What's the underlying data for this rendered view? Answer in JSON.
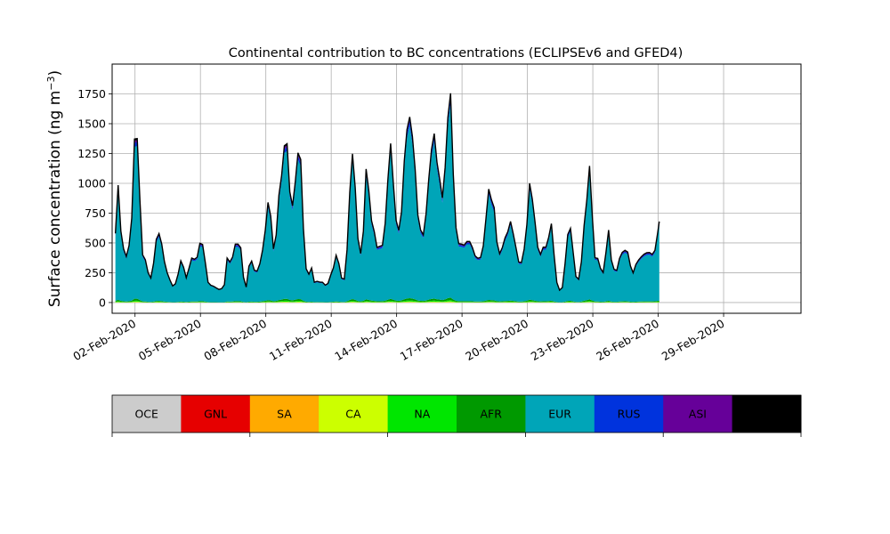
{
  "chart_data": {
    "type": "area",
    "title": "Continental contribution to BC concentrations (ECLIPSEv6 and GFED4)",
    "ylabel_text": "Surface concentration (ng m",
    "ylabel_exp": "−3",
    "ylabel_close": ")",
    "ylim": [
      -90,
      2000
    ],
    "yticks": [
      0,
      250,
      500,
      750,
      1000,
      1250,
      1500,
      1750
    ],
    "xlim": [
      -1.05,
      30.55
    ],
    "xticks": [
      {
        "pos": 0,
        "label": "02-Feb-2020"
      },
      {
        "pos": 3,
        "label": "05-Feb-2020"
      },
      {
        "pos": 6,
        "label": "08-Feb-2020"
      },
      {
        "pos": 9,
        "label": "11-Feb-2020"
      },
      {
        "pos": 12,
        "label": "14-Feb-2020"
      },
      {
        "pos": 15,
        "label": "17-Feb-2020"
      },
      {
        "pos": 18,
        "label": "20-Feb-2020"
      },
      {
        "pos": 21,
        "label": "23-Feb-2020"
      },
      {
        "pos": 24,
        "label": "26-Feb-2020"
      },
      {
        "pos": 27,
        "label": "29-Feb-2020"
      }
    ],
    "grid": true,
    "time_start_days": -0.9,
    "time_step_days": 0.125,
    "total_curve_knots": [
      [
        -0.9,
        580
      ],
      [
        -0.78,
        1000
      ],
      [
        -0.65,
        600
      ],
      [
        -0.5,
        420
      ],
      [
        -0.38,
        380
      ],
      [
        -0.25,
        500
      ],
      [
        -0.13,
        750
      ],
      [
        -0.05,
        1350
      ],
      [
        0.08,
        1460
      ],
      [
        0.2,
        950
      ],
      [
        0.35,
        400
      ],
      [
        0.5,
        350
      ],
      [
        0.62,
        230
      ],
      [
        0.75,
        200
      ],
      [
        0.85,
        330
      ],
      [
        1.0,
        570
      ],
      [
        1.12,
        580
      ],
      [
        1.25,
        470
      ],
      [
        1.4,
        280
      ],
      [
        1.5,
        240
      ],
      [
        1.62,
        180
      ],
      [
        1.75,
        130
      ],
      [
        1.9,
        170
      ],
      [
        2.1,
        350
      ],
      [
        2.2,
        330
      ],
      [
        2.3,
        200
      ],
      [
        2.42,
        220
      ],
      [
        2.55,
        380
      ],
      [
        2.7,
        360
      ],
      [
        2.85,
        380
      ],
      [
        3.0,
        520
      ],
      [
        3.12,
        480
      ],
      [
        3.25,
        300
      ],
      [
        3.35,
        170
      ],
      [
        3.5,
        140
      ],
      [
        3.65,
        135
      ],
      [
        3.8,
        110
      ],
      [
        3.95,
        110
      ],
      [
        4.1,
        150
      ],
      [
        4.2,
        380
      ],
      [
        4.35,
        340
      ],
      [
        4.5,
        390
      ],
      [
        4.6,
        490
      ],
      [
        4.75,
        490
      ],
      [
        4.88,
        450
      ],
      [
        5.0,
        150
      ],
      [
        5.1,
        130
      ],
      [
        5.25,
        340
      ],
      [
        5.38,
        350
      ],
      [
        5.5,
        250
      ],
      [
        5.65,
        270
      ],
      [
        5.8,
        380
      ],
      [
        5.95,
        560
      ],
      [
        6.1,
        840
      ],
      [
        6.2,
        780
      ],
      [
        6.35,
        450
      ],
      [
        6.45,
        500
      ],
      [
        6.6,
        900
      ],
      [
        6.75,
        1100
      ],
      [
        6.88,
        1380
      ],
      [
        7.0,
        1320
      ],
      [
        7.12,
        850
      ],
      [
        7.22,
        800
      ],
      [
        7.32,
        1030
      ],
      [
        7.42,
        960
      ],
      [
        7.5,
        1390
      ],
      [
        7.58,
        1300
      ],
      [
        7.68,
        800
      ],
      [
        7.78,
        400
      ],
      [
        7.9,
        200
      ],
      [
        8.0,
        250
      ],
      [
        8.1,
        290
      ],
      [
        8.22,
        170
      ],
      [
        8.38,
        180
      ],
      [
        8.5,
        170
      ],
      [
        8.62,
        170
      ],
      [
        8.75,
        140
      ],
      [
        8.9,
        170
      ],
      [
        9.0,
        250
      ],
      [
        9.12,
        300
      ],
      [
        9.25,
        420
      ],
      [
        9.38,
        300
      ],
      [
        9.5,
        180
      ],
      [
        9.62,
        200
      ],
      [
        9.75,
        500
      ],
      [
        9.88,
        1050
      ],
      [
        10.0,
        1300
      ],
      [
        10.12,
        900
      ],
      [
        10.25,
        450
      ],
      [
        10.38,
        400
      ],
      [
        10.5,
        650
      ],
      [
        10.6,
        1120
      ],
      [
        10.7,
        1000
      ],
      [
        10.82,
        700
      ],
      [
        10.95,
        640
      ],
      [
        11.05,
        460
      ],
      [
        11.2,
        470
      ],
      [
        11.35,
        480
      ],
      [
        11.5,
        700
      ],
      [
        11.62,
        1100
      ],
      [
        11.75,
        1390
      ],
      [
        11.88,
        880
      ],
      [
        12.0,
        640
      ],
      [
        12.12,
        600
      ],
      [
        12.25,
        800
      ],
      [
        12.38,
        1300
      ],
      [
        12.5,
        1490
      ],
      [
        12.62,
        1570
      ],
      [
        12.75,
        1350
      ],
      [
        12.88,
        1050
      ],
      [
        13.0,
        650
      ],
      [
        13.12,
        600
      ],
      [
        13.25,
        560
      ],
      [
        13.38,
        800
      ],
      [
        13.5,
        1100
      ],
      [
        13.62,
        1320
      ],
      [
        13.75,
        1440
      ],
      [
        13.88,
        1100
      ],
      [
        14.0,
        1020
      ],
      [
        14.12,
        850
      ],
      [
        14.25,
        1200
      ],
      [
        14.35,
        1550
      ],
      [
        14.45,
        1890
      ],
      [
        14.55,
        1350
      ],
      [
        14.65,
        800
      ],
      [
        14.78,
        500
      ],
      [
        14.9,
        490
      ],
      [
        15.0,
        490
      ],
      [
        15.12,
        480
      ],
      [
        15.25,
        520
      ],
      [
        15.38,
        510
      ],
      [
        15.5,
        450
      ],
      [
        15.62,
        380
      ],
      [
        15.75,
        370
      ],
      [
        15.88,
        380
      ],
      [
        16.0,
        500
      ],
      [
        16.12,
        750
      ],
      [
        16.25,
        1000
      ],
      [
        16.38,
        820
      ],
      [
        16.5,
        790
      ],
      [
        16.62,
        450
      ],
      [
        16.75,
        400
      ],
      [
        16.88,
        480
      ],
      [
        17.0,
        560
      ],
      [
        17.12,
        600
      ],
      [
        17.25,
        700
      ],
      [
        17.38,
        540
      ],
      [
        17.5,
        440
      ],
      [
        17.62,
        320
      ],
      [
        17.75,
        340
      ],
      [
        17.88,
        480
      ],
      [
        18.0,
        700
      ],
      [
        18.12,
        1060
      ],
      [
        18.25,
        820
      ],
      [
        18.38,
        630
      ],
      [
        18.5,
        420
      ],
      [
        18.62,
        400
      ],
      [
        18.75,
        480
      ],
      [
        18.88,
        460
      ],
      [
        19.0,
        570
      ],
      [
        19.12,
        680
      ],
      [
        19.25,
        330
      ],
      [
        19.38,
        120
      ],
      [
        19.5,
        100
      ],
      [
        19.62,
        130
      ],
      [
        19.75,
        370
      ],
      [
        19.88,
        630
      ],
      [
        20.0,
        620
      ],
      [
        20.12,
        380
      ],
      [
        20.25,
        180
      ],
      [
        20.38,
        200
      ],
      [
        20.5,
        380
      ],
      [
        20.62,
        700
      ],
      [
        20.75,
        900
      ],
      [
        20.88,
        1220
      ],
      [
        21.0,
        600
      ],
      [
        21.12,
        330
      ],
      [
        21.25,
        380
      ],
      [
        21.38,
        260
      ],
      [
        21.5,
        250
      ],
      [
        21.62,
        450
      ],
      [
        21.72,
        620
      ],
      [
        21.82,
        380
      ],
      [
        21.95,
        280
      ],
      [
        22.1,
        270
      ],
      [
        22.25,
        390
      ],
      [
        22.38,
        430
      ],
      [
        22.5,
        440
      ],
      [
        22.62,
        420
      ],
      [
        22.75,
        280
      ],
      [
        22.88,
        240
      ],
      [
        23.0,
        340
      ],
      [
        23.12,
        360
      ],
      [
        23.25,
        390
      ],
      [
        23.38,
        410
      ],
      [
        23.5,
        420
      ],
      [
        23.62,
        420
      ],
      [
        23.75,
        400
      ],
      [
        23.88,
        450
      ],
      [
        24.0,
        620
      ],
      [
        24.05,
        680
      ]
    ],
    "series": [
      {
        "name": "OCE",
        "color": "#cccccc",
        "share": 0.0015
      },
      {
        "name": "GNL",
        "color": "#e60000",
        "share": 0.0
      },
      {
        "name": "SA",
        "color": "#ffaa00",
        "share": 0.0
      },
      {
        "name": "CA",
        "color": "#ccff00",
        "share": 0.004
      },
      {
        "name": "NA",
        "color": "#00e600",
        "share": 0.006
      },
      {
        "name": "AFR",
        "color": "#009900",
        "share": 0.012
      },
      {
        "name": "EUR",
        "color": "#00a5b8",
        "share": 0.93
      },
      {
        "name": "RUS",
        "color": "#0033dd",
        "share": 0.025
      },
      {
        "name": "ASI",
        "color": "#660099",
        "share": 0.012
      },
      {
        "name": "AUS",
        "color": "#000000",
        "share": 0.0095
      }
    ],
    "legend": {
      "placement": "bottom",
      "entries": [
        {
          "name": "OCE",
          "color": "#cccccc"
        },
        {
          "name": "GNL",
          "color": "#e60000"
        },
        {
          "name": "SA",
          "color": "#ffaa00"
        },
        {
          "name": "CA",
          "color": "#ccff00"
        },
        {
          "name": "NA",
          "color": "#00e600"
        },
        {
          "name": "AFR",
          "color": "#009900"
        },
        {
          "name": "EUR",
          "color": "#00a5b8"
        },
        {
          "name": "RUS",
          "color": "#0033dd"
        },
        {
          "name": "ASI",
          "color": "#660099"
        },
        {
          "name": "AUS",
          "color": "#000000"
        }
      ]
    }
  }
}
